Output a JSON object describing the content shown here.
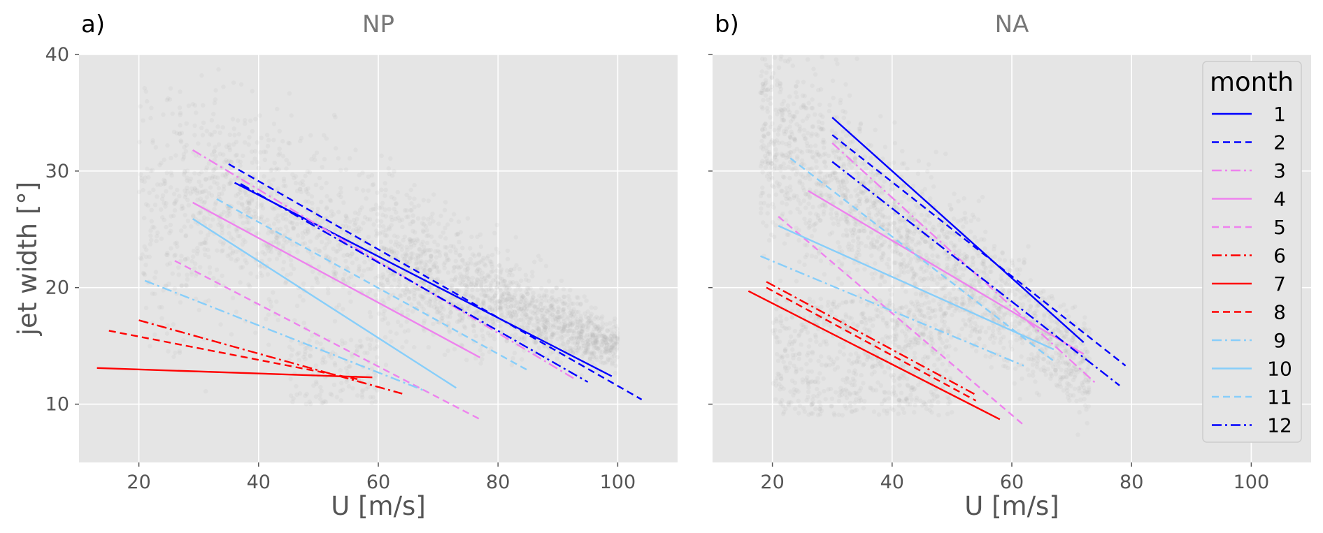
{
  "chart_data": [
    {
      "type": "scatter",
      "panel_label": "a)",
      "title": "NP",
      "xlabel": "U [m/s]",
      "ylabel": "jet width [°]",
      "xlim": [
        10,
        110
      ],
      "ylim": [
        5,
        40
      ],
      "xticks": [
        20,
        40,
        60,
        80,
        100
      ],
      "yticks": [
        10,
        20,
        30,
        40
      ],
      "grid": true,
      "scatter_color": "#a9a9a9",
      "regression_lines": [
        {
          "month": "1",
          "x": [
            36,
            99
          ],
          "y": [
            29,
            12.4
          ]
        },
        {
          "month": "2",
          "x": [
            35,
            104
          ],
          "y": [
            30.6,
            10.4
          ]
        },
        {
          "month": "3",
          "x": [
            29,
            93
          ],
          "y": [
            31.8,
            12.1
          ]
        },
        {
          "month": "4",
          "x": [
            29,
            77
          ],
          "y": [
            27.3,
            14
          ]
        },
        {
          "month": "5",
          "x": [
            26,
            77
          ],
          "y": [
            22.3,
            8.7
          ]
        },
        {
          "month": "6",
          "x": [
            20,
            64
          ],
          "y": [
            17.2,
            10.9
          ]
        },
        {
          "month": "7",
          "x": [
            13,
            59
          ],
          "y": [
            13.1,
            12.3
          ]
        },
        {
          "month": "8",
          "x": [
            15,
            57
          ],
          "y": [
            16.3,
            12.1
          ]
        },
        {
          "month": "9",
          "x": [
            21,
            68
          ],
          "y": [
            20.6,
            11.1
          ]
        },
        {
          "month": "10",
          "x": [
            29,
            73
          ],
          "y": [
            25.9,
            11.4
          ]
        },
        {
          "month": "11",
          "x": [
            33,
            85
          ],
          "y": [
            27.6,
            12.9
          ]
        },
        {
          "month": "12",
          "x": [
            37,
            95
          ],
          "y": [
            28.9,
            11.9
          ]
        }
      ]
    },
    {
      "type": "scatter",
      "panel_label": "b)",
      "title": "NA",
      "xlabel": "U [m/s]",
      "ylabel": "",
      "xlim": [
        10,
        110
      ],
      "ylim": [
        5,
        40
      ],
      "xticks": [
        20,
        40,
        60,
        80,
        100
      ],
      "yticks": [
        10,
        20,
        30,
        40
      ],
      "grid": true,
      "scatter_color": "#a9a9a9",
      "legend": {
        "title": "month",
        "placement": "top-right"
      },
      "regression_lines": [
        {
          "month": "1",
          "x": [
            30,
            72
          ],
          "y": [
            34.6,
            15.3
          ]
        },
        {
          "month": "2",
          "x": [
            30,
            79
          ],
          "y": [
            33.1,
            13.3
          ]
        },
        {
          "month": "3",
          "x": [
            30,
            74
          ],
          "y": [
            32.4,
            11.8
          ]
        },
        {
          "month": "4",
          "x": [
            26,
            72
          ],
          "y": [
            28.3,
            14.3
          ]
        },
        {
          "month": "5",
          "x": [
            21,
            62
          ],
          "y": [
            26.1,
            8.2
          ]
        },
        {
          "month": "6",
          "x": [
            19,
            54
          ],
          "y": [
            20.5,
            10.8
          ]
        },
        {
          "month": "7",
          "x": [
            16,
            58
          ],
          "y": [
            19.7,
            8.7
          ]
        },
        {
          "month": "8",
          "x": [
            19,
            54
          ],
          "y": [
            20,
            10.3
          ]
        },
        {
          "month": "9",
          "x": [
            18,
            62
          ],
          "y": [
            22.7,
            13.3
          ]
        },
        {
          "month": "10",
          "x": [
            21,
            67
          ],
          "y": [
            25.3,
            14.7
          ]
        },
        {
          "month": "11",
          "x": [
            23,
            67
          ],
          "y": [
            31.1,
            13.7
          ]
        },
        {
          "month": "12",
          "x": [
            30,
            78
          ],
          "y": [
            30.8,
            11.6
          ]
        }
      ]
    }
  ],
  "legend": {
    "title": "month",
    "entries": [
      {
        "label": "1",
        "color": "#0000ff",
        "dash": "solid"
      },
      {
        "label": "2",
        "color": "#0000ff",
        "dash": "dashed"
      },
      {
        "label": "3",
        "color": "#ee82ee",
        "dash": "dashdot"
      },
      {
        "label": "4",
        "color": "#ee82ee",
        "dash": "solid"
      },
      {
        "label": "5",
        "color": "#ee82ee",
        "dash": "dashed"
      },
      {
        "label": "6",
        "color": "#ff0000",
        "dash": "dashdot"
      },
      {
        "label": "7",
        "color": "#ff0000",
        "dash": "solid"
      },
      {
        "label": "8",
        "color": "#ff0000",
        "dash": "dashed"
      },
      {
        "label": "9",
        "color": "#87cefa",
        "dash": "dashdot"
      },
      {
        "label": "10",
        "color": "#87cefa",
        "dash": "solid"
      },
      {
        "label": "11",
        "color": "#87cefa",
        "dash": "dashed"
      },
      {
        "label": "12",
        "color": "#0000ff",
        "dash": "dashdot"
      }
    ]
  },
  "colors": {
    "axes_background": "#e5e5e5",
    "grid": "#ffffff",
    "scatter": "#a9a9a9"
  }
}
